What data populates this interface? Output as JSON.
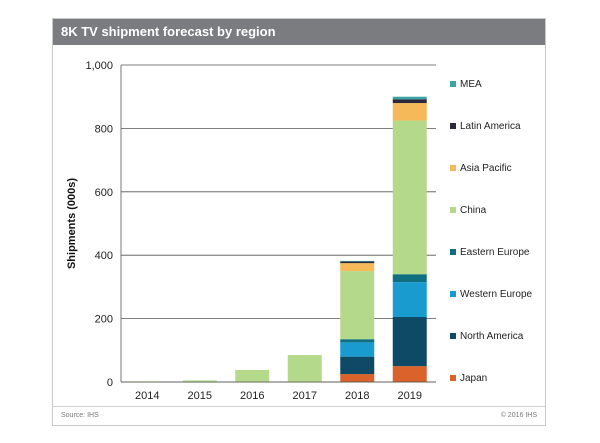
{
  "chart_data": {
    "type": "bar",
    "stacked": true,
    "title": "8K TV shipment forecast by region",
    "ylabel": "Shipments (000s)",
    "xlabel": "",
    "ylim": [
      0,
      1000
    ],
    "yticks": [
      0,
      200,
      400,
      600,
      800,
      1000
    ],
    "ytick_labels": [
      "0",
      "200",
      "400",
      "600",
      "800",
      "1,000"
    ],
    "categories": [
      "2014",
      "2015",
      "2016",
      "2017",
      "2018",
      "2019"
    ],
    "legend_position": "right",
    "series": [
      {
        "name": "Japan",
        "color": "#d9632b",
        "values": [
          0,
          0,
          0,
          0,
          25,
          50
        ]
      },
      {
        "name": "North America",
        "color": "#0e4a66",
        "values": [
          0,
          0,
          0,
          0,
          55,
          155
        ]
      },
      {
        "name": "Western Europe",
        "color": "#1a9bd0",
        "values": [
          0,
          0,
          0,
          0,
          45,
          110
        ]
      },
      {
        "name": "Eastern Europe",
        "color": "#0f6f80",
        "values": [
          0,
          0,
          0,
          0,
          10,
          25
        ]
      },
      {
        "name": "China",
        "color": "#b5d98a",
        "values": [
          2,
          5,
          38,
          85,
          215,
          485
        ]
      },
      {
        "name": "Asia Pacific",
        "color": "#f6b95a",
        "values": [
          0,
          0,
          0,
          0,
          25,
          55
        ]
      },
      {
        "name": "Latin America",
        "color": "#2a2a3a",
        "values": [
          0,
          0,
          0,
          0,
          5,
          12
        ]
      },
      {
        "name": "MEA",
        "color": "#3ba5a5",
        "values": [
          0,
          0,
          0,
          0,
          2,
          8
        ]
      }
    ],
    "legend_order": [
      "MEA",
      "Latin America",
      "Asia Pacific",
      "China",
      "Eastern Europe",
      "Western Europe",
      "North America",
      "Japan"
    ]
  },
  "footer": {
    "source": "Source: IHS",
    "copyright": "© 2016 IHS"
  }
}
